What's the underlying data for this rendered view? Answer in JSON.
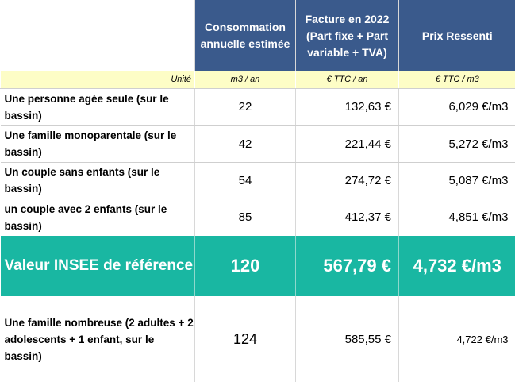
{
  "headers": {
    "consumption": "Consommation annuelle estimée",
    "bill": "Facture en 2022 (Part fixe + Part variable + TVA)",
    "price": "Prix Ressenti"
  },
  "units": {
    "label": "Unité",
    "consumption": "m3 / an",
    "bill": "€ TTC / an",
    "price": "€ TTC / m3"
  },
  "rows": [
    {
      "label": "Une personne agée seule (sur le bassin)",
      "consumption": "22",
      "bill": "132,63 €",
      "price": "6,029 €/m3"
    },
    {
      "label": "Une famille monoparentale (sur le bassin)",
      "consumption": "42",
      "bill": "221,44 €",
      "price": "5,272 €/m3"
    },
    {
      "label": "Un couple sans enfants (sur le bassin)",
      "consumption": "54",
      "bill": "274,72 €",
      "price": "5,087 €/m3"
    },
    {
      "label": "un couple avec 2 enfants (sur le bassin)",
      "consumption": "85",
      "bill": "412,37 €",
      "price": "4,851 €/m3"
    }
  ],
  "reference": {
    "label": "Valeur INSEE de référence",
    "consumption": "120",
    "bill": "567,79 €",
    "price": "4,732 €/m3"
  },
  "large_family": {
    "label": "Une famille nombreuse (2 adultes + 2 adolescents + 1 enfant, sur le bassin)",
    "consumption": "124",
    "bill": "585,55 €",
    "price": "4,722 €/m3"
  },
  "colors": {
    "header_bg": "#3a5a8c",
    "unit_bg": "#fdfdc6",
    "highlight_bg": "#19b7a2"
  }
}
